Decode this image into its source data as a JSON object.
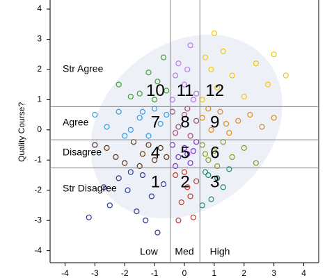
{
  "chart_data": {
    "type": "scatter",
    "ylabel": "Quality Course?",
    "xlim": [
      -4.5,
      4.5
    ],
    "ylim": [
      -4.4,
      4.3
    ],
    "xticks": [
      -4,
      -3,
      -2,
      -1,
      0,
      1,
      2,
      3,
      4
    ],
    "yticks": [
      -4,
      -3,
      -2,
      -1,
      0,
      1,
      2,
      3,
      4
    ],
    "xrefs": [
      -0.47,
      0.52
    ],
    "yrefs": [
      0.77,
      -0.33,
      -1.26
    ],
    "row_labels": [
      "Str Agree",
      "Agree",
      "Disagree",
      "Str Disagree"
    ],
    "column_labels": [
      "Low",
      "Med",
      "High"
    ],
    "series": [
      {
        "name": "1",
        "color": "#2b3990",
        "x": [
          -3.2,
          -2.5,
          -2.2,
          -1.9,
          -1.6,
          -1.4,
          -1.1,
          -0.9,
          -0.7,
          -1.8,
          -2.7,
          -1.3
        ],
        "y": [
          -2.9,
          -2.5,
          -1.6,
          -2.0,
          -2.7,
          -1.5,
          -2.2,
          -3.4,
          -1.8,
          -1.4,
          -1.9,
          -3.0
        ]
      },
      {
        "name": "2",
        "color": "#c0392b",
        "x": [
          -0.3,
          -0.1,
          0.1,
          0.3,
          0.0,
          -0.2,
          0.4,
          0.2
        ],
        "y": [
          -1.5,
          -2.4,
          -1.9,
          -2.9,
          -1.4,
          -3.0,
          -1.7,
          -2.2
        ]
      },
      {
        "name": "3",
        "color": "#1e8a6e",
        "x": [
          0.7,
          0.9,
          1.1,
          1.5,
          0.6,
          1.3,
          0.8
        ],
        "y": [
          -1.4,
          -2.3,
          -1.6,
          -1.3,
          -2.5,
          -1.9,
          -1.5
        ]
      },
      {
        "name": "4",
        "color": "#5c3310",
        "x": [
          -2.6,
          -2.0,
          -1.7,
          -1.4,
          -1.2,
          -1.0,
          -0.8,
          -0.6,
          -2.3,
          -1.5,
          -3.0
        ],
        "y": [
          -0.6,
          -1.1,
          -0.4,
          -0.8,
          -0.5,
          -1.0,
          -0.6,
          -0.9,
          -0.9,
          -1.2,
          -0.5
        ]
      },
      {
        "name": "5",
        "color": "#7a2fd0",
        "x": [
          -0.4,
          -0.2,
          0.0,
          0.2,
          0.4,
          -0.3,
          0.1,
          0.3
        ],
        "y": [
          -0.5,
          -0.9,
          -0.6,
          -1.1,
          -0.4,
          -1.2,
          -0.8,
          -0.7
        ]
      },
      {
        "name": "6",
        "color": "#8b9a1e",
        "x": [
          0.6,
          0.8,
          1.0,
          1.3,
          1.6,
          2.0,
          2.4,
          0.7,
          1.1
        ],
        "y": [
          -0.5,
          -1.0,
          -0.7,
          -0.4,
          -0.9,
          -0.6,
          -1.1,
          -0.8,
          -1.2
        ]
      },
      {
        "name": "7",
        "color": "#2e9be6",
        "x": [
          -3.0,
          -2.6,
          -2.2,
          -1.8,
          -1.5,
          -1.2,
          -1.0,
          -0.8,
          -0.6,
          -2.0,
          -1.4
        ],
        "y": [
          0.5,
          0.1,
          0.6,
          0.0,
          0.4,
          -0.2,
          0.7,
          0.2,
          0.5,
          -0.2,
          0.6
        ]
      },
      {
        "name": "8",
        "color": "#9c4d6e",
        "x": [
          -0.4,
          -0.2,
          0.0,
          0.2,
          0.4,
          -0.3,
          0.1
        ],
        "y": [
          0.6,
          0.1,
          0.5,
          -0.2,
          0.3,
          -0.1,
          0.7
        ]
      },
      {
        "name": "9",
        "color": "#d98a1c",
        "x": [
          0.6,
          0.9,
          1.2,
          1.5,
          1.8,
          2.2,
          2.6,
          0.8,
          1.4,
          3.0
        ],
        "y": [
          0.4,
          0.0,
          0.6,
          -0.1,
          0.3,
          0.5,
          0.1,
          0.7,
          0.2,
          0.4
        ]
      },
      {
        "name": "10",
        "color": "#3aa02c",
        "x": [
          -2.2,
          -1.8,
          -1.2,
          -1.0,
          -0.7,
          -0.6,
          -1.5,
          -0.9
        ],
        "y": [
          1.5,
          1.1,
          1.9,
          1.0,
          2.4,
          1.3,
          1.2,
          1.6
        ]
      },
      {
        "name": "11",
        "color": "#b57be6",
        "x": [
          -0.4,
          -0.2,
          0.0,
          0.2,
          0.4,
          -0.3,
          0.1,
          0.3
        ],
        "y": [
          1.0,
          2.2,
          1.5,
          2.8,
          1.2,
          1.8,
          2.0,
          1.0
        ]
      },
      {
        "name": "12",
        "color": "#f2c80f",
        "x": [
          0.6,
          0.9,
          1.1,
          1.3,
          1.6,
          2.0,
          2.4,
          2.8,
          3.0,
          1.0,
          3.4,
          0.7
        ],
        "y": [
          1.0,
          2.0,
          1.4,
          2.6,
          1.8,
          1.1,
          2.2,
          1.5,
          2.5,
          3.2,
          1.8,
          2.4
        ]
      }
    ]
  }
}
